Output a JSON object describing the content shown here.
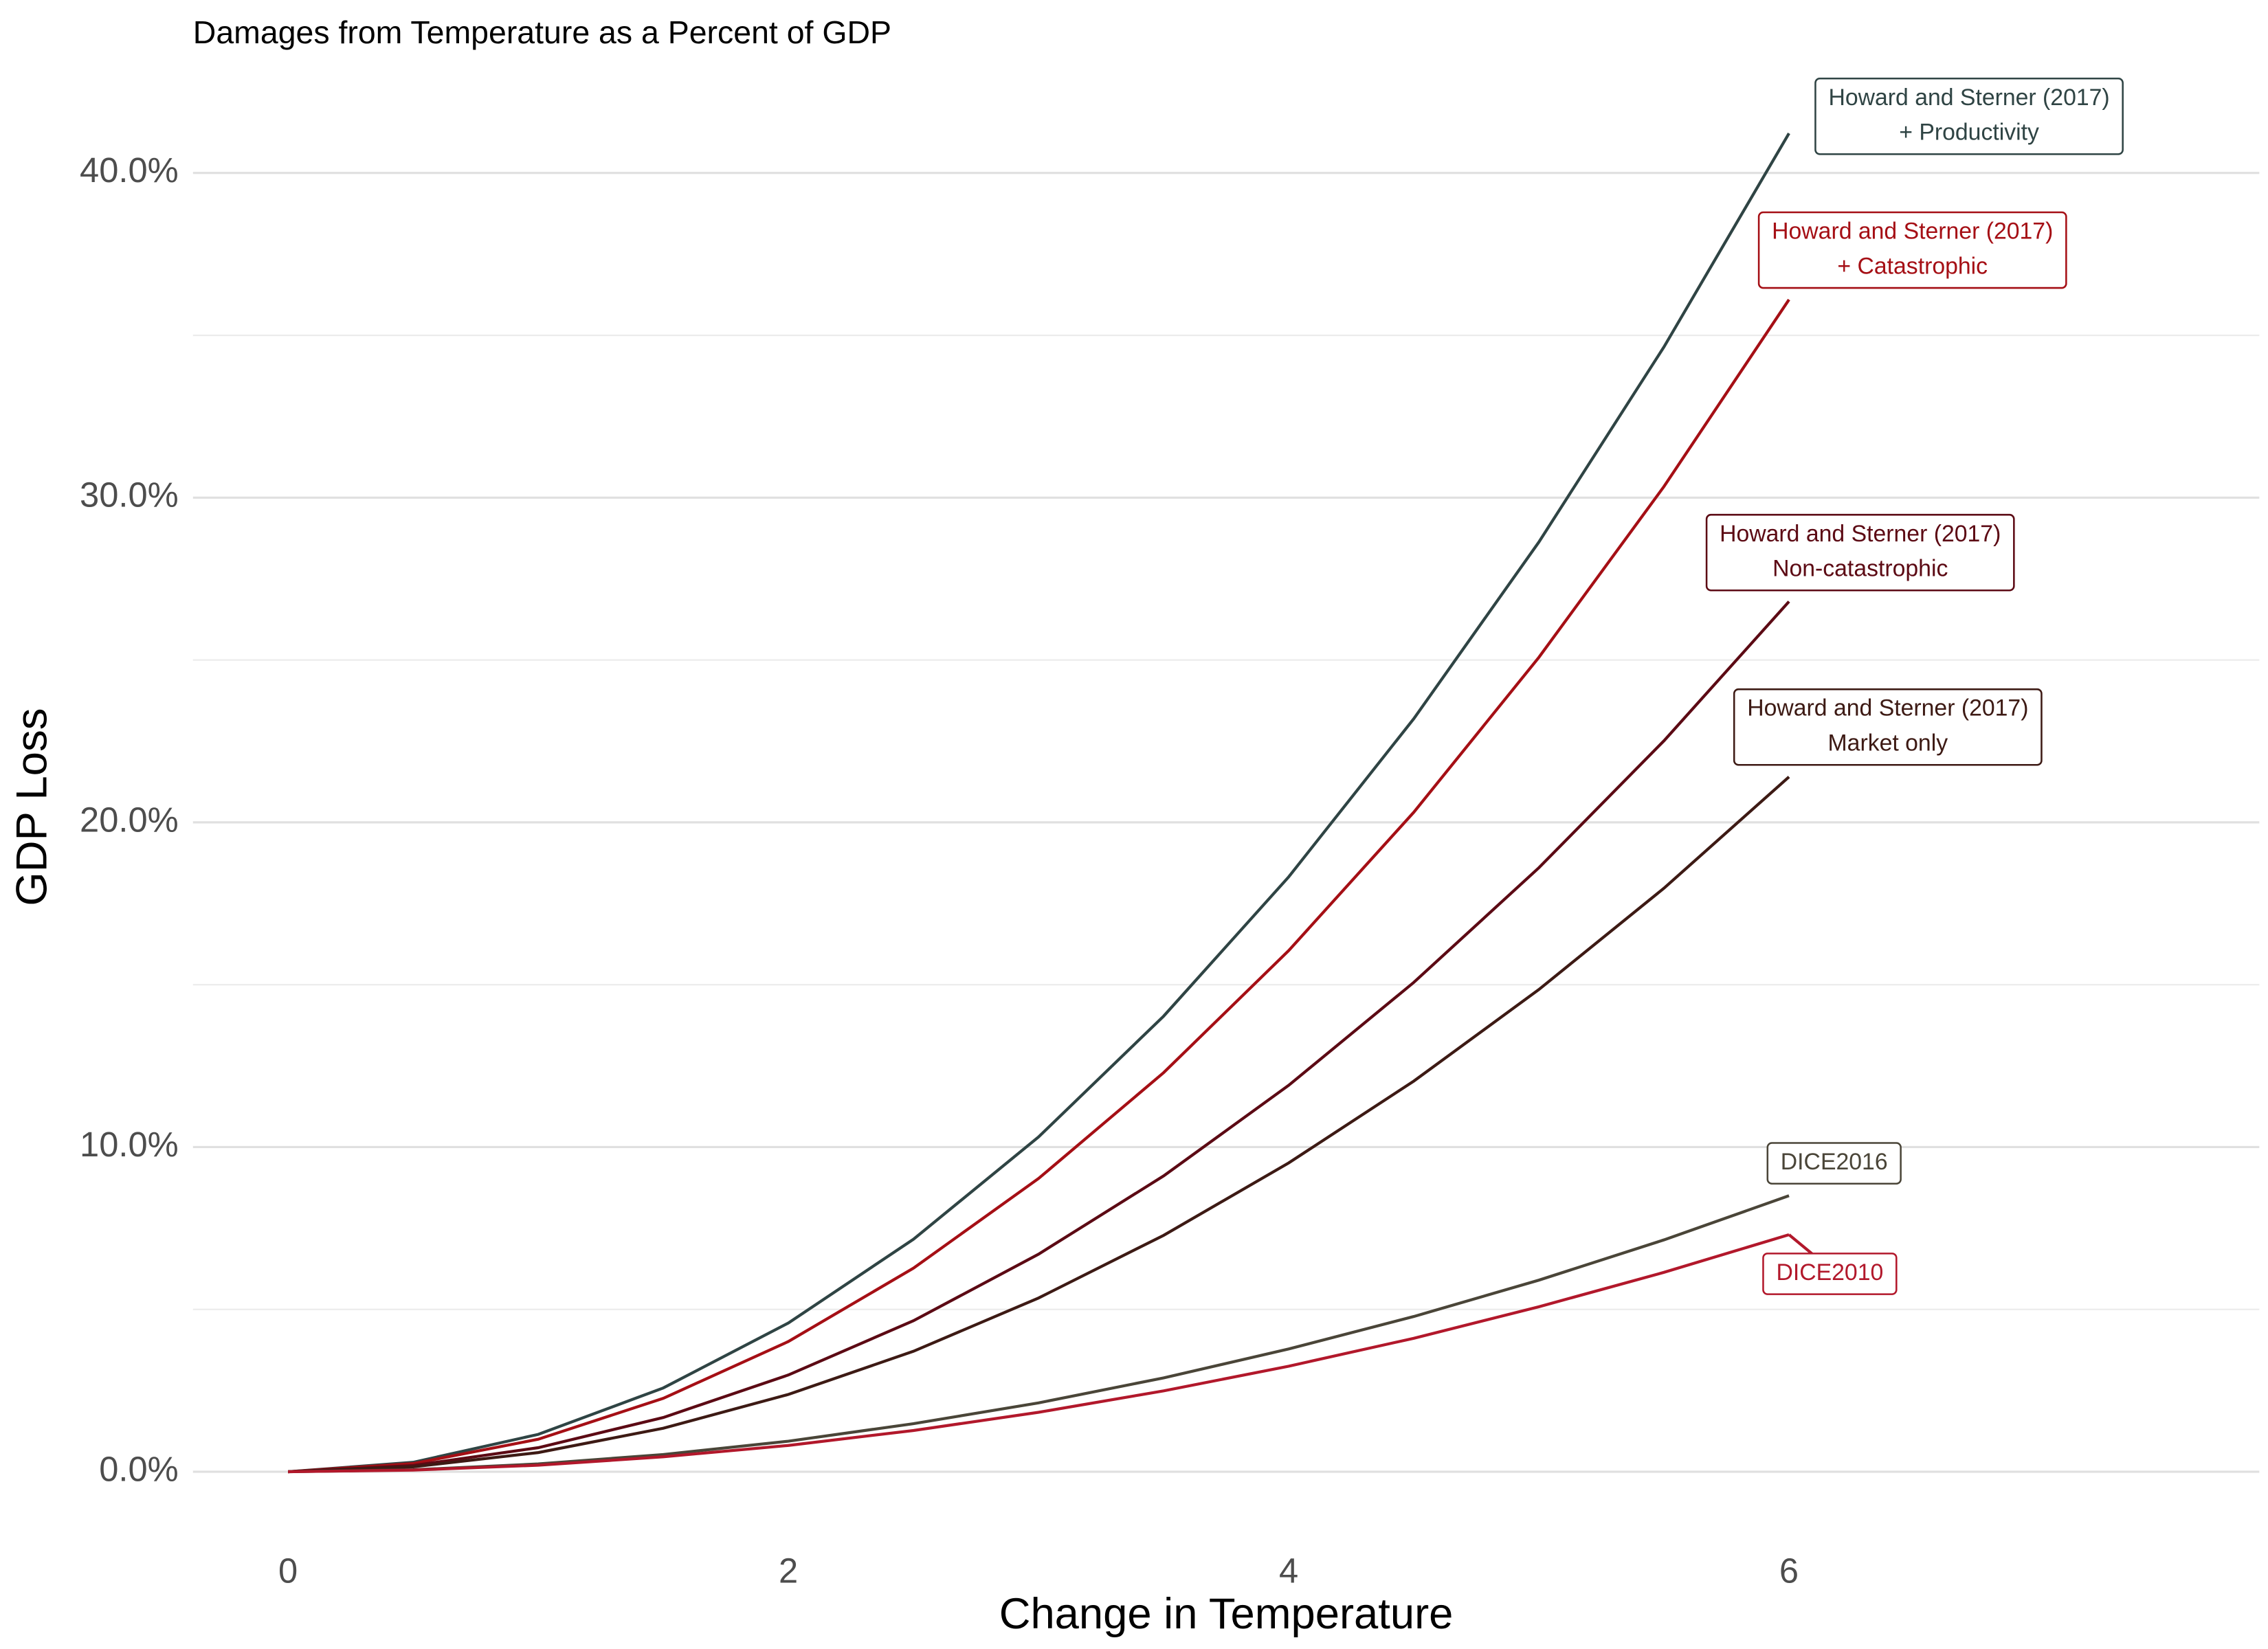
{
  "chart_data": {
    "type": "line",
    "title": "Damages from Temperature as a Percent of GDP",
    "x_label": "Change in Temperature",
    "y_label": "GDP Loss",
    "x": [
      0,
      0.5,
      1,
      1.5,
      2,
      2.5,
      3,
      3.5,
      4,
      4.5,
      5,
      5.5,
      6
    ],
    "series": [
      {
        "label_lines": [
          "Howard and Sterner (2017)",
          "+ Productivity"
        ],
        "color": "#2f4444",
        "values": [
          0,
          0.29,
          1.15,
          2.58,
          4.58,
          7.16,
          10.31,
          14.03,
          18.32,
          23.19,
          28.63,
          34.64,
          41.22
        ]
      },
      {
        "label_lines": [
          "Howard and Sterner (2017)",
          "+ Catastrophic"
        ],
        "color": "#a50f15",
        "values": [
          0,
          0.25,
          1.0,
          2.26,
          4.01,
          6.27,
          9.03,
          12.29,
          16.05,
          20.31,
          25.08,
          30.34,
          36.1
        ]
      },
      {
        "label_lines": [
          "Howard and Sterner (2017)",
          "Non-catastrophic"
        ],
        "color": "#5c0a14",
        "values": [
          0,
          0.19,
          0.74,
          1.67,
          2.98,
          4.65,
          6.7,
          9.11,
          11.9,
          15.07,
          18.6,
          22.51,
          26.8
        ]
      },
      {
        "label_lines": [
          "Howard and Sterner (2017)",
          "Market only"
        ],
        "color": "#3d1a14",
        "values": [
          0,
          0.15,
          0.59,
          1.34,
          2.38,
          3.71,
          5.35,
          7.28,
          9.51,
          12.03,
          14.85,
          17.97,
          21.4
        ]
      },
      {
        "label_lines": [
          "DICE2016"
        ],
        "color": "#4a4538",
        "values": [
          0,
          0.06,
          0.24,
          0.53,
          0.94,
          1.48,
          2.12,
          2.89,
          3.78,
          4.78,
          5.9,
          7.14,
          8.5
        ]
      },
      {
        "label_lines": [
          "DICE2010"
        ],
        "color": "#b2182b",
        "values": [
          0,
          0.05,
          0.2,
          0.46,
          0.81,
          1.27,
          1.83,
          2.49,
          3.25,
          4.11,
          5.08,
          6.14,
          7.3
        ]
      }
    ],
    "xlim": [
      -0.38,
      7.88
    ],
    "ylim": [
      -1.25,
      42.55
    ],
    "xticks": [
      0,
      2,
      4,
      6
    ],
    "yticks": [
      {
        "value": 0,
        "label": "0.0%"
      },
      {
        "value": 10,
        "label": "10.0%"
      },
      {
        "value": 20,
        "label": "20.0%"
      },
      {
        "value": 30,
        "label": "30.0%"
      },
      {
        "value": 40,
        "label": "40.0%"
      }
    ],
    "y_minor_grid": [
      5,
      15,
      25,
      35
    ],
    "grid": true
  }
}
